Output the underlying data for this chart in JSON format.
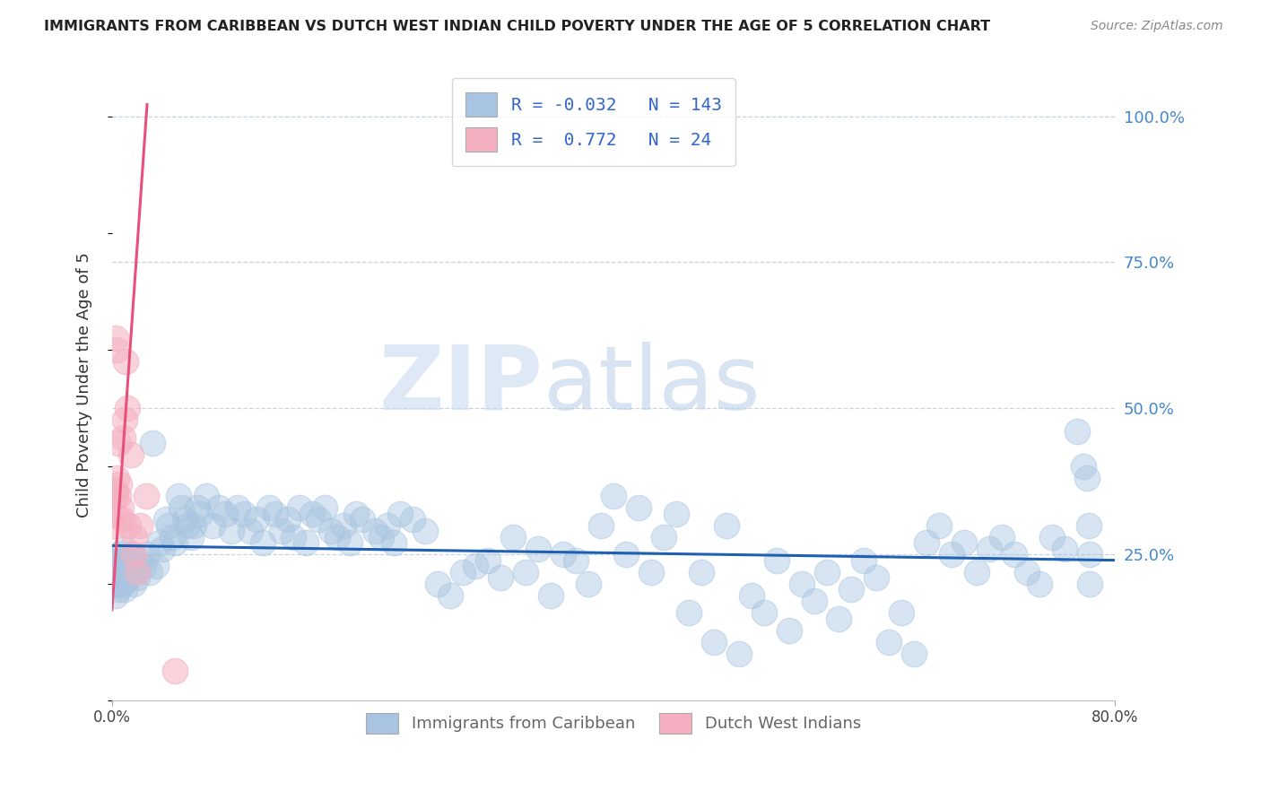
{
  "title": "IMMIGRANTS FROM CARIBBEAN VS DUTCH WEST INDIAN CHILD POVERTY UNDER THE AGE OF 5 CORRELATION CHART",
  "source": "Source: ZipAtlas.com",
  "ylabel": "Child Poverty Under the Age of 5",
  "watermark_zip": "ZIP",
  "watermark_atlas": "atlas",
  "xmin": 0.0,
  "xmax": 0.8,
  "ymin": 0.0,
  "ymax": 1.08,
  "yticks": [
    0.25,
    0.5,
    0.75,
    1.0
  ],
  "ytick_labels": [
    "25.0%",
    "50.0%",
    "75.0%",
    "100.0%"
  ],
  "xtick_labels_show": [
    "0.0%",
    "80.0%"
  ],
  "xticks_show": [
    0.0,
    0.8
  ],
  "blue_R": -0.032,
  "blue_N": 143,
  "pink_R": 0.772,
  "pink_N": 24,
  "blue_dot_color": "#a8c4e0",
  "blue_edge_color": "#7aaac8",
  "pink_dot_color": "#f4b0c0",
  "pink_edge_color": "#e888a0",
  "blue_line_color": "#2060b0",
  "pink_line_color": "#e8507a",
  "background_color": "#ffffff",
  "grid_color": "#c8d4e4",
  "title_color": "#222222",
  "source_color": "#888888",
  "ylabel_color": "#333333",
  "right_tick_color": "#4488cc",
  "legend_text_color": "#3366cc",
  "bottom_legend_color": "#666666",
  "blue_x": [
    0.001,
    0.002,
    0.002,
    0.003,
    0.003,
    0.004,
    0.004,
    0.005,
    0.005,
    0.006,
    0.006,
    0.007,
    0.007,
    0.008,
    0.008,
    0.009,
    0.009,
    0.01,
    0.01,
    0.011,
    0.012,
    0.013,
    0.014,
    0.015,
    0.016,
    0.017,
    0.018,
    0.019,
    0.02,
    0.022,
    0.025,
    0.028,
    0.03,
    0.032,
    0.035,
    0.038,
    0.04,
    0.043,
    0.045,
    0.048,
    0.05,
    0.053,
    0.055,
    0.058,
    0.06,
    0.063,
    0.065,
    0.068,
    0.07,
    0.075,
    0.08,
    0.085,
    0.09,
    0.095,
    0.1,
    0.105,
    0.11,
    0.115,
    0.12,
    0.125,
    0.13,
    0.135,
    0.14,
    0.145,
    0.15,
    0.155,
    0.16,
    0.165,
    0.17,
    0.175,
    0.18,
    0.185,
    0.19,
    0.195,
    0.2,
    0.21,
    0.215,
    0.22,
    0.225,
    0.23,
    0.24,
    0.25,
    0.26,
    0.27,
    0.28,
    0.29,
    0.3,
    0.31,
    0.32,
    0.33,
    0.34,
    0.35,
    0.36,
    0.37,
    0.38,
    0.39,
    0.4,
    0.41,
    0.42,
    0.43,
    0.44,
    0.45,
    0.46,
    0.47,
    0.48,
    0.49,
    0.5,
    0.51,
    0.52,
    0.53,
    0.54,
    0.55,
    0.56,
    0.57,
    0.58,
    0.59,
    0.6,
    0.61,
    0.62,
    0.63,
    0.64,
    0.65,
    0.66,
    0.67,
    0.68,
    0.69,
    0.7,
    0.71,
    0.72,
    0.73,
    0.74,
    0.75,
    0.76,
    0.77,
    0.775,
    0.778,
    0.779,
    0.78,
    0.78
  ],
  "blue_y": [
    0.24,
    0.22,
    0.2,
    0.18,
    0.24,
    0.22,
    0.2,
    0.19,
    0.23,
    0.21,
    0.25,
    0.2,
    0.23,
    0.22,
    0.24,
    0.2,
    0.22,
    0.19,
    0.26,
    0.22,
    0.24,
    0.21,
    0.23,
    0.22,
    0.25,
    0.2,
    0.23,
    0.22,
    0.21,
    0.24,
    0.23,
    0.25,
    0.22,
    0.44,
    0.23,
    0.27,
    0.26,
    0.31,
    0.3,
    0.28,
    0.27,
    0.35,
    0.33,
    0.31,
    0.3,
    0.28,
    0.3,
    0.33,
    0.32,
    0.35,
    0.3,
    0.33,
    0.32,
    0.29,
    0.33,
    0.32,
    0.29,
    0.31,
    0.27,
    0.33,
    0.32,
    0.29,
    0.31,
    0.28,
    0.33,
    0.27,
    0.32,
    0.31,
    0.33,
    0.29,
    0.28,
    0.3,
    0.27,
    0.32,
    0.31,
    0.29,
    0.28,
    0.3,
    0.27,
    0.32,
    0.31,
    0.29,
    0.2,
    0.18,
    0.22,
    0.23,
    0.24,
    0.21,
    0.28,
    0.22,
    0.26,
    0.18,
    0.25,
    0.24,
    0.2,
    0.3,
    0.35,
    0.25,
    0.33,
    0.22,
    0.28,
    0.32,
    0.15,
    0.22,
    0.1,
    0.3,
    0.08,
    0.18,
    0.15,
    0.24,
    0.12,
    0.2,
    0.17,
    0.22,
    0.14,
    0.19,
    0.24,
    0.21,
    0.1,
    0.15,
    0.08,
    0.27,
    0.3,
    0.25,
    0.27,
    0.22,
    0.26,
    0.28,
    0.25,
    0.22,
    0.2,
    0.28,
    0.26,
    0.46,
    0.4,
    0.38,
    0.3,
    0.25,
    0.2
  ],
  "pink_x": [
    0.001,
    0.002,
    0.002,
    0.003,
    0.003,
    0.004,
    0.004,
    0.005,
    0.005,
    0.006,
    0.007,
    0.008,
    0.009,
    0.01,
    0.011,
    0.012,
    0.013,
    0.015,
    0.017,
    0.018,
    0.02,
    0.022,
    0.027,
    0.05
  ],
  "pink_y": [
    0.3,
    0.36,
    0.32,
    0.35,
    0.62,
    0.6,
    0.38,
    0.44,
    0.35,
    0.37,
    0.33,
    0.31,
    0.45,
    0.48,
    0.58,
    0.5,
    0.3,
    0.42,
    0.25,
    0.28,
    0.22,
    0.3,
    0.35,
    0.05
  ],
  "blue_line_x0": 0.0,
  "blue_line_x1": 0.8,
  "blue_line_y0": 0.265,
  "blue_line_y1": 0.24,
  "pink_line_x0": 0.0,
  "pink_line_x1": 0.028,
  "pink_line_y0": 0.155,
  "pink_line_y1": 1.02
}
